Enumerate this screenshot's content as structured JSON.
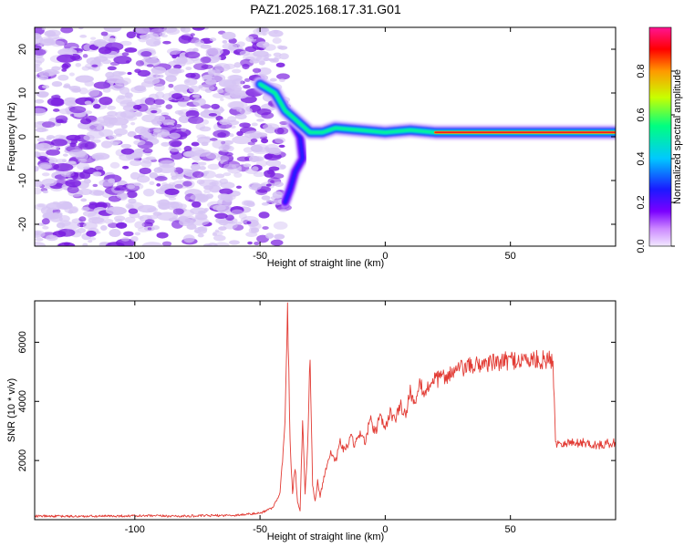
{
  "title": "PAZ1.2025.168.17.31.G01",
  "colors": {
    "snr_line": "#e23b34",
    "speckle_light": "#d6c4f4",
    "speckle_dark": "#7a1ee0",
    "colorbar_stops": [
      "#f2e9ff",
      "#cc88ff",
      "#7a00ff",
      "#1a1aff",
      "#00c8ff",
      "#00ff80",
      "#c8ff00",
      "#ff9900",
      "#ff0000",
      "#ff1493"
    ]
  },
  "chart_data": [
    {
      "type": "heatmap",
      "xlabel": "Height of straight line (km)",
      "ylabel": "Frequency (Hz)",
      "xlim": [
        -140,
        92
      ],
      "ylim": [
        -25,
        25
      ],
      "xticks": [
        -100,
        -50,
        0,
        50
      ],
      "xtick_labels": [
        "-100",
        "-50",
        "0",
        "50"
      ],
      "yticks": [
        -20,
        -10,
        0,
        10,
        20
      ],
      "ytick_labels": [
        "-20",
        "-10",
        "0",
        "10",
        "20"
      ],
      "noise_region_x": [
        -140,
        -47
      ],
      "signal_track": [
        {
          "x": -50,
          "y": 12
        },
        {
          "x": -47,
          "y": 11
        },
        {
          "x": -44,
          "y": 10
        },
        {
          "x": -40,
          "y": 6
        },
        {
          "x": -36,
          "y": 4
        },
        {
          "x": -34,
          "y": 3
        },
        {
          "x": -30,
          "y": 1
        },
        {
          "x": -25,
          "y": 1
        },
        {
          "x": -20,
          "y": 2
        },
        {
          "x": -10,
          "y": 1.5
        },
        {
          "x": 0,
          "y": 1
        },
        {
          "x": 10,
          "y": 1.5
        },
        {
          "x": 20,
          "y": 1
        },
        {
          "x": 40,
          "y": 1
        },
        {
          "x": 70,
          "y": 1
        },
        {
          "x": 92,
          "y": 1
        }
      ],
      "side_branch": [
        {
          "x": -37,
          "y": 3
        },
        {
          "x": -34,
          "y": 0
        },
        {
          "x": -33,
          "y": -5
        },
        {
          "x": -36,
          "y": -8
        },
        {
          "x": -38,
          "y": -12
        },
        {
          "x": -40,
          "y": -15
        }
      ],
      "colorbar": {
        "label": "Normalized spectral amplitude",
        "range": [
          0,
          1
        ],
        "ticks": [
          0,
          0.2,
          0.4,
          0.6,
          0.8
        ],
        "tick_labels": [
          "0.0",
          "0.2",
          "0.4",
          "0.6",
          "0.8"
        ]
      }
    },
    {
      "type": "line",
      "xlabel": "Height of straight line (km)",
      "ylabel": "SNR (10 * v/v)",
      "xlim": [
        -140,
        92
      ],
      "ylim": [
        0,
        7400
      ],
      "xticks": [
        -100,
        -50,
        0,
        50
      ],
      "xtick_labels": [
        "-100",
        "-50",
        "0",
        "50"
      ],
      "yticks": [
        2000,
        4000,
        6000
      ],
      "ytick_labels": [
        "2000",
        "4000",
        "6000"
      ],
      "series": [
        {
          "x": [
            -140,
            -120,
            -100,
            -80,
            -60,
            -50,
            -45,
            -42,
            -40,
            -39,
            -38,
            -37,
            -36,
            -35,
            -34,
            -33,
            -32,
            -31,
            -30,
            -29,
            -28,
            -27,
            -26,
            -25,
            -24,
            -22,
            -20,
            -18,
            -16,
            -14,
            -12,
            -10,
            -8,
            -6,
            -4,
            -2,
            0,
            2,
            4,
            6,
            8,
            10,
            12,
            14,
            16,
            18,
            20,
            25,
            30,
            35,
            40,
            45,
            50,
            55,
            60,
            65,
            67,
            68,
            70,
            75,
            80,
            85,
            90,
            92
          ],
          "y": [
            120,
            110,
            130,
            120,
            150,
            220,
            400,
            900,
            3200,
            7200,
            2600,
            900,
            1800,
            600,
            300,
            3400,
            900,
            2400,
            5600,
            1200,
            600,
            1300,
            800,
            1200,
            1600,
            2300,
            1900,
            2600,
            2300,
            2800,
            2500,
            3000,
            2600,
            3400,
            2900,
            3500,
            3000,
            3700,
            3300,
            3900,
            3500,
            4400,
            3800,
            4600,
            4200,
            4700,
            4700,
            4900,
            5100,
            5200,
            5300,
            5300,
            5400,
            5400,
            5400,
            5400,
            5400,
            2600,
            2600,
            2600,
            2600,
            2500,
            2600,
            2600
          ]
        }
      ]
    }
  ]
}
